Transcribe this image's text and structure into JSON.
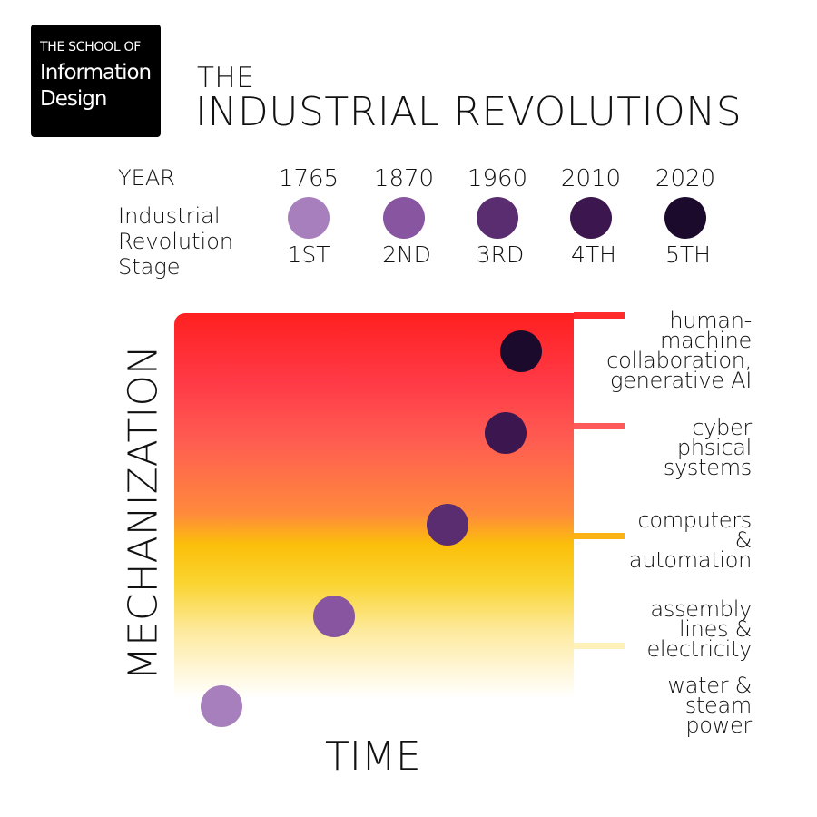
{
  "logo": {
    "line1": "THE SCHOOL OF",
    "line2": "Information",
    "line3": "Design"
  },
  "title": {
    "line1": "THE",
    "line2": "INDUSTRIAL REVOLUTIONS"
  },
  "legend": {
    "year_label": "YEAR",
    "stage_label": "Industrial Revolution Stage"
  },
  "chart_data": {
    "type": "scatter",
    "xlabel": "TIME",
    "ylabel": "MECHANIZATION",
    "points": [
      {
        "year": "1765",
        "stage": "1ST",
        "label": "water & steam power",
        "color": "#a87fbd"
      },
      {
        "year": "1870",
        "stage": "2ND",
        "label": "assembly lines & electricity",
        "color": "#8855a0"
      },
      {
        "year": "1960",
        "stage": "3RD",
        "label": "computers & automation",
        "color": "#5a2c70"
      },
      {
        "year": "2010",
        "stage": "4TH",
        "label": "cyber phsical systems",
        "color": "#3c164e"
      },
      {
        "year": "2020",
        "stage": "5TH",
        "label": "human-machine collaboration, generative AI",
        "color": "#1c0a2c"
      }
    ],
    "tick_colors": [
      "#fdf0b8",
      "#fbb214",
      "#ff5a5a",
      "#ff2a2a"
    ],
    "grid": false
  }
}
